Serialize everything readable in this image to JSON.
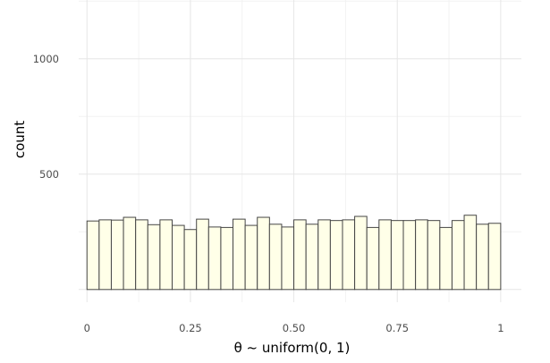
{
  "chart_data": {
    "type": "bar",
    "title": "",
    "xlabel": "θ ~ uniform(0, 1)",
    "ylabel": "count",
    "xlim": [
      -0.02,
      1.05
    ],
    "ylim": [
      -55,
      1255
    ],
    "x_ticks": [
      0,
      0.25,
      0.5,
      0.75,
      1
    ],
    "x_tick_labels": [
      "0",
      "0.25",
      "0.50",
      "0.75",
      "1"
    ],
    "y_ticks": [
      500,
      1000
    ],
    "y_tick_labels": [
      "500",
      "1000"
    ],
    "grid": true,
    "legend": "none",
    "bin_width": 0.029411765,
    "bin_start": 0,
    "counts": [
      297,
      302,
      301,
      313,
      302,
      281,
      302,
      278,
      260,
      305,
      271,
      269,
      305,
      278,
      313,
      283,
      271,
      302,
      283,
      302,
      299,
      302,
      317,
      269,
      302,
      299,
      299,
      302,
      299,
      269,
      299,
      322,
      283,
      287
    ],
    "colors": {
      "bar_fill": "#ffffe8",
      "bar_stroke": "#464646",
      "background": "#ffffff"
    }
  }
}
